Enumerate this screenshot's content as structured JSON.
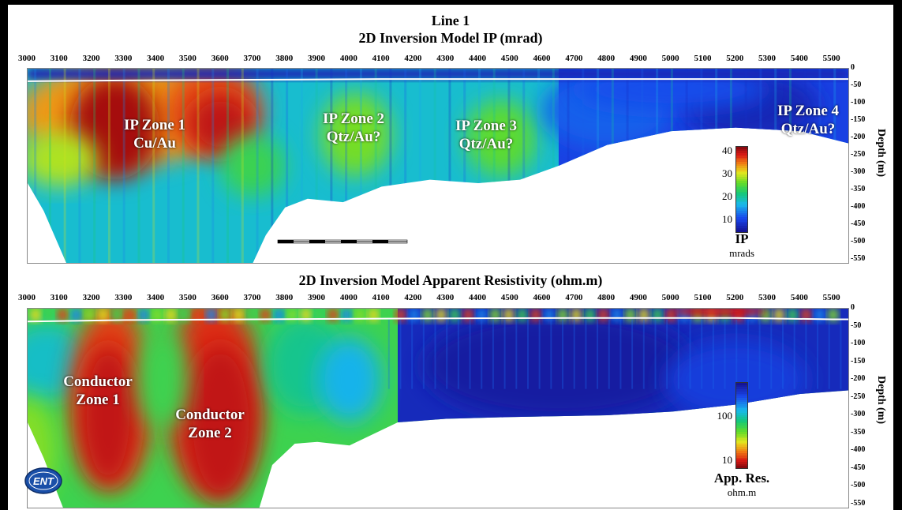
{
  "titles": {
    "line": "Line 1",
    "ip": "2D Inversion Model IP (mrad)",
    "res": "2D Inversion Model Apparent Resistivity (ohm.m)"
  },
  "logo_text": "ENT",
  "chart_data": [
    {
      "type": "heatmap",
      "title": "2D Inversion Model IP (mrad)",
      "subtitle": "Line 1",
      "x_ticks": [
        3000,
        3100,
        3200,
        3300,
        3400,
        3500,
        3600,
        3700,
        3800,
        3900,
        4000,
        4100,
        4200,
        4300,
        4400,
        4500,
        4600,
        4700,
        4800,
        4900,
        5000,
        5100,
        5200,
        5300,
        5400,
        5500
      ],
      "xlim": [
        3000,
        5550
      ],
      "ylabel": "Depth (m)",
      "y_ticks": [
        0,
        -50,
        -100,
        -150,
        -200,
        -250,
        -300,
        -350,
        -400,
        -450,
        -500,
        -550
      ],
      "ylim": [
        0,
        -560
      ],
      "colorbar": {
        "title": "IP",
        "unit": "mrads",
        "ticks": [
          10,
          20,
          30,
          40
        ],
        "range": [
          5,
          42
        ],
        "scale": "linear"
      },
      "annotations": [
        {
          "text": "IP Zone 1\nCu/Au",
          "x": 3330,
          "depth": -160
        },
        {
          "text": "IP Zone 2\nQtz/Au?",
          "x": 4060,
          "depth": -160
        },
        {
          "text": "IP Zone 3\nQtz/Au?",
          "x": 4470,
          "depth": -165
        },
        {
          "text": "IP Zone 4\nQtz/Au?",
          "x": 5450,
          "depth": -145
        }
      ],
      "bottom_boundary": [
        [
          3000,
          -330
        ],
        [
          3050,
          -410
        ],
        [
          3120,
          -560
        ],
        [
          3700,
          -560
        ],
        [
          3740,
          -480
        ],
        [
          3800,
          -400
        ],
        [
          3870,
          -375
        ],
        [
          3980,
          -385
        ],
        [
          4100,
          -340
        ],
        [
          4250,
          -320
        ],
        [
          4400,
          -330
        ],
        [
          4530,
          -320
        ],
        [
          4650,
          -280
        ],
        [
          4800,
          -220
        ],
        [
          5000,
          -180
        ],
        [
          5200,
          -170
        ],
        [
          5400,
          -180
        ],
        [
          5550,
          -215
        ]
      ],
      "anomalies": [
        {
          "x": 3280,
          "depth": -150,
          "value": 41,
          "label": "IP Zone 1"
        },
        {
          "x": 3560,
          "depth": -150,
          "value": 39
        },
        {
          "x": 4010,
          "depth": -180,
          "value": 25,
          "label": "IP Zone 2"
        },
        {
          "x": 4450,
          "depth": -190,
          "value": 24,
          "label": "IP Zone 3"
        },
        {
          "x": 5260,
          "depth": -120,
          "value": 9,
          "label": "IP Zone 4"
        }
      ],
      "topography_line": "white"
    },
    {
      "type": "heatmap",
      "title": "2D Inversion Model Apparent Resistivity (ohm.m)",
      "x_ticks": [
        3000,
        3100,
        3200,
        3300,
        3400,
        3500,
        3600,
        3700,
        3800,
        3900,
        4000,
        4100,
        4200,
        4300,
        4400,
        4500,
        4600,
        4700,
        4800,
        4900,
        5000,
        5100,
        5200,
        5300,
        5400,
        5500
      ],
      "xlim": [
        3000,
        5550
      ],
      "ylabel": "Depth (m)",
      "y_ticks": [
        0,
        -50,
        -100,
        -150,
        -200,
        -250,
        -300,
        -350,
        -400,
        -450,
        -500,
        -550
      ],
      "ylim": [
        0,
        -560
      ],
      "colorbar": {
        "title": "App. Res.",
        "unit": "ohm.m",
        "ticks": [
          10,
          100
        ],
        "range": [
          7,
          600
        ],
        "scale": "log"
      },
      "annotations": [
        {
          "text": "Conductor\nZone 1",
          "x": 3240,
          "depth": -210
        },
        {
          "text": "Conductor\nZone 2",
          "x": 3620,
          "depth": -280
        }
      ],
      "bottom_boundary": [
        [
          3000,
          -320
        ],
        [
          3050,
          -420
        ],
        [
          3110,
          -560
        ],
        [
          3720,
          -560
        ],
        [
          3760,
          -440
        ],
        [
          3830,
          -380
        ],
        [
          3900,
          -375
        ],
        [
          4000,
          -385
        ],
        [
          4150,
          -320
        ],
        [
          4300,
          -310
        ],
        [
          4500,
          -305
        ],
        [
          4800,
          -300
        ],
        [
          5000,
          -290
        ],
        [
          5200,
          -270
        ],
        [
          5400,
          -240
        ],
        [
          5550,
          -230
        ]
      ],
      "anomalies": [
        {
          "x": 3260,
          "depth": -250,
          "value": 10,
          "label": "Conductor Zone 1"
        },
        {
          "x": 3580,
          "depth": -260,
          "value": 10,
          "label": "Conductor Zone 2"
        },
        {
          "x": 4700,
          "depth": -150,
          "value": 400
        },
        {
          "x": 5100,
          "depth": -10,
          "value": 10
        }
      ],
      "topography_line": "white"
    }
  ]
}
